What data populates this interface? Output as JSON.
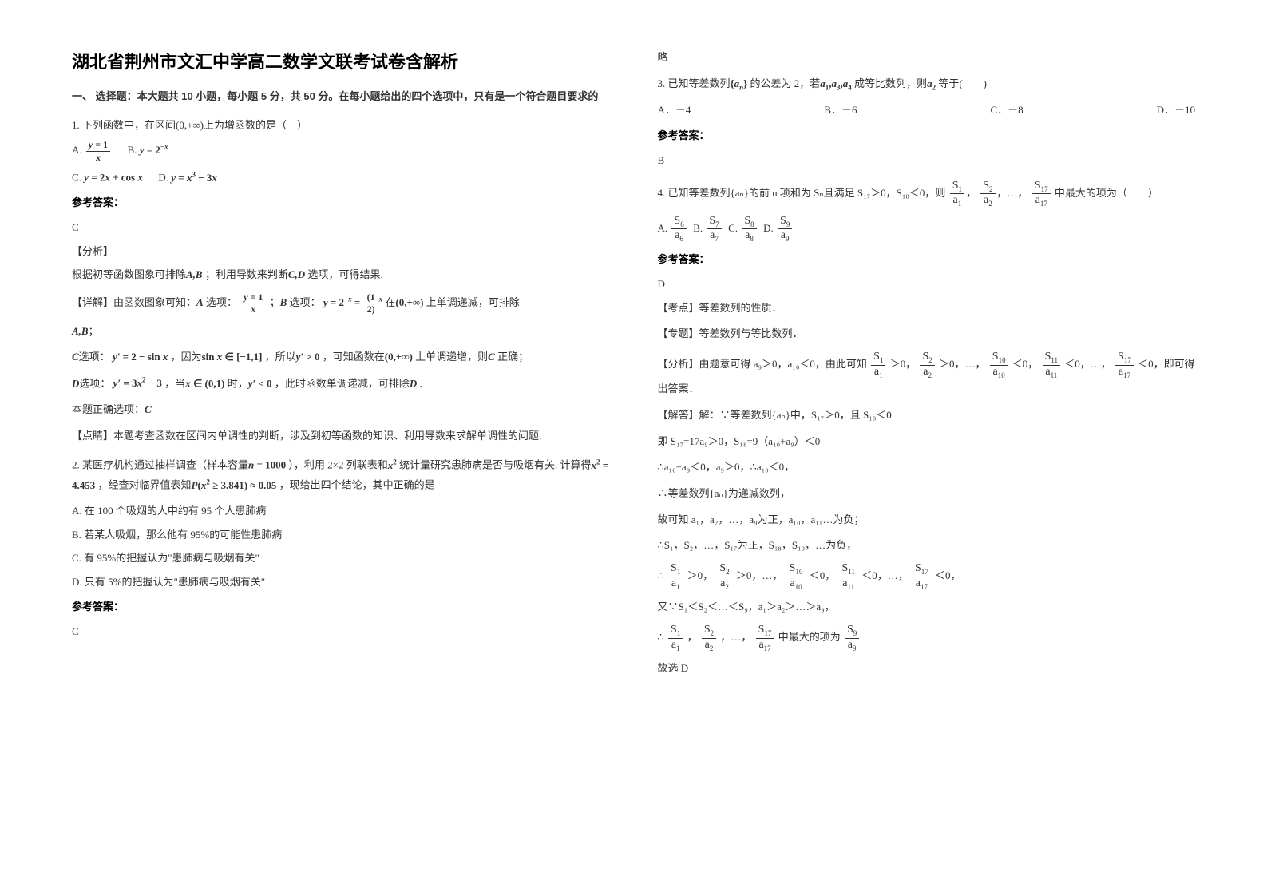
{
  "title": "湖北省荆州市文汇中学高二数学文联考试卷含解析",
  "section1_intro": "一、 选择题：本大题共 10 小题，每小题 5 分，共 50 分。在每小题给出的四个选项中，只有是一个符合题目要求的",
  "q1": {
    "stem": "1. 下列函数中，在区间(0,+∞)上为增函数的是（　）",
    "optA_label": "A.",
    "optB_label": "B.",
    "optC_label": "C.",
    "optD_label": "D.",
    "ans_label": "参考答案：",
    "ans": "C",
    "analysis_label": "【分析】",
    "analysis": "根据初等函数图象可排除",
    "analysis2": "；利用导数来判断",
    "analysis3": "选项，可得结果.",
    "detail_label": "【详解】由函数图象可知：",
    "detail1": "选项：",
    "detail2": "；",
    "detail3": "选项：",
    "detail4": "在",
    "detail5": "上单调递减，可排除",
    "c_opt": "选项：",
    "c_text1": "，因为",
    "c_text2": "，所以",
    "c_text3": "，可知函数在",
    "c_text4": "上单调递增，则",
    "c_text5": "正确；",
    "d_opt": "选项：",
    "d_text1": "，当",
    "d_text2": "时，",
    "d_text3": "，此时函数单调递减，可排除",
    "d_text4": ".",
    "correct": "本题正确选项：",
    "point_label": "【点睛】本题考查函数在区间内单调性的判断，涉及到初等函数的知识、利用导数来求解单调性的问题."
  },
  "q2": {
    "stem1": "2. 某医疗机构通过抽样调查（样本容量",
    "stem2": "），利用 2×2 列联表和",
    "stem3": "统计量研究患肺病是否与吸烟有关. 计算得",
    "stem4": "，经查对临界值表知",
    "stem5": "，现给出四个结论，其中正确的是",
    "optA": "A. 在 100 个吸烟的人中约有 95 个人患肺病",
    "optB": "B. 若某人吸烟，那么他有 95%的可能性患肺病",
    "optC": "C. 有 95%的把握认为\"患肺病与吸烟有关\"",
    "optD": "D. 只有 5%的把握认为\"患肺病与吸烟有关\"",
    "ans_label": "参考答案：",
    "ans": "C",
    "brief": "略"
  },
  "q3": {
    "stem1": "3. 已知等差数列",
    "stem2": "的公差为 2，若",
    "stem3": "成等比数列，则",
    "stem4": "等于(　　)",
    "optA": "A．－4",
    "optB": "B．－6",
    "optC": "C．－8",
    "optD": "D．－10",
    "ans_label": "参考答案：",
    "ans": "B"
  },
  "q4": {
    "stem1": "4. 已知等差数列{aₙ}的前 n 项和为 Sₙ且满足 S₁₇＞0，S₁₈＜0，则",
    "stem2": "中最大的项为（　　）",
    "optA_label": "A.",
    "optB_label": "B.",
    "optC_label": "C.",
    "optD_label": "D.",
    "ans_label": "参考答案：",
    "ans": "D",
    "kp_label": "【考点】等差数列的性质．",
    "sp_label": "【专题】等差数列与等比数列．",
    "fx_label": "【分析】由题意可得 a₉＞0，a₁₀＜0，由此可知",
    "fx2": "＞0，",
    "fx3": "＞0，…，",
    "fx4": "＜0，",
    "fx5": "＜0，…，",
    "fx6": "＜0，即可得出答案．",
    "jd_label": "【解答】解：∵等差数列{aₙ}中，S₁₇＞0，且 S₁₈＜0",
    "jd1": "即 S₁₇=17a₉＞0，S₁₈=9（a₁₀+a₉）＜0",
    "jd2": "∴a₁₀+a₉＜0，a₉＞0，∴a₁₀＜0，",
    "jd3": "∴等差数列{aₙ}为递减数列，",
    "jd4": "故可知 a₁，a₂，…，a₉为正，a₁₀，a₁₁…为负；",
    "jd5": "∴S₁，S₂，…，S₁₇为正，S₁₈，S₁₉，…为负，",
    "jd6a": "∴",
    "jd6b": "＞0，",
    "jd6c": "＞0，…，",
    "jd6d": "＜0，",
    "jd6e": "＜0，…，",
    "jd6f": "＜0，",
    "jd7": "又∵S₁＜S₂＜…＜S₉，a₁＞a₂＞…＞a₉，",
    "jd8a": "∴",
    "jd8b": "，",
    "jd8c": "，…，",
    "jd8d": "中最大的项为",
    "jd9": "故选 D"
  }
}
